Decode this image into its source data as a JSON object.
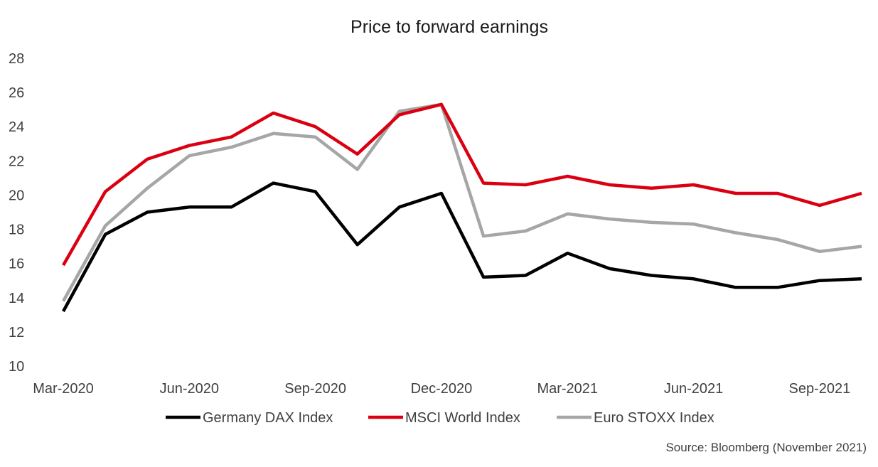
{
  "chart_data": {
    "type": "line",
    "title": "Price to forward earnings",
    "xlabel": "",
    "ylabel": "",
    "x": [
      "Mar-2020",
      "Apr-2020",
      "May-2020",
      "Jun-2020",
      "Jul-2020",
      "Aug-2020",
      "Sep-2020",
      "Oct-2020",
      "Nov-2020",
      "Dec-2020",
      "Jan-2021",
      "Feb-2021",
      "Mar-2021",
      "Apr-2021",
      "May-2021",
      "Jun-2021",
      "Jul-2021",
      "Aug-2021",
      "Sep-2021",
      "Oct-2021"
    ],
    "x_tick_labels": [
      "Mar-2020",
      "Jun-2020",
      "Sep-2020",
      "Dec-2020",
      "Mar-2021",
      "Jun-2021",
      "Sep-2021"
    ],
    "x_tick_positions": [
      0,
      3,
      6,
      9,
      12,
      15,
      18
    ],
    "ylim": [
      10,
      28
    ],
    "y_ticks": [
      10,
      12,
      14,
      16,
      18,
      20,
      22,
      24,
      26,
      28
    ],
    "grid": false,
    "legend_position": "bottom",
    "series": [
      {
        "name": "Germany DAX Index",
        "color": "#000000",
        "values": [
          13.2,
          17.7,
          19.0,
          19.3,
          19.3,
          20.7,
          20.2,
          17.1,
          19.3,
          20.1,
          15.2,
          15.3,
          16.6,
          15.7,
          15.3,
          15.1,
          14.6,
          14.6,
          15.0,
          15.1
        ]
      },
      {
        "name": "MSCI World Index",
        "color": "#db0011",
        "values": [
          15.9,
          20.2,
          22.1,
          22.9,
          23.4,
          24.8,
          24.0,
          22.4,
          24.7,
          25.3,
          20.7,
          20.6,
          21.1,
          20.6,
          20.4,
          20.6,
          20.1,
          20.1,
          19.4,
          20.1
        ]
      },
      {
        "name": "Euro STOXX Index",
        "color": "#a6a6a6",
        "values": [
          13.8,
          18.2,
          20.4,
          22.3,
          22.8,
          23.6,
          23.4,
          21.5,
          24.9,
          25.3,
          17.6,
          17.9,
          18.9,
          18.6,
          18.4,
          18.3,
          17.8,
          17.4,
          16.7,
          17.0
        ]
      }
    ],
    "source": "Source: Bloomberg (November 2021)"
  }
}
